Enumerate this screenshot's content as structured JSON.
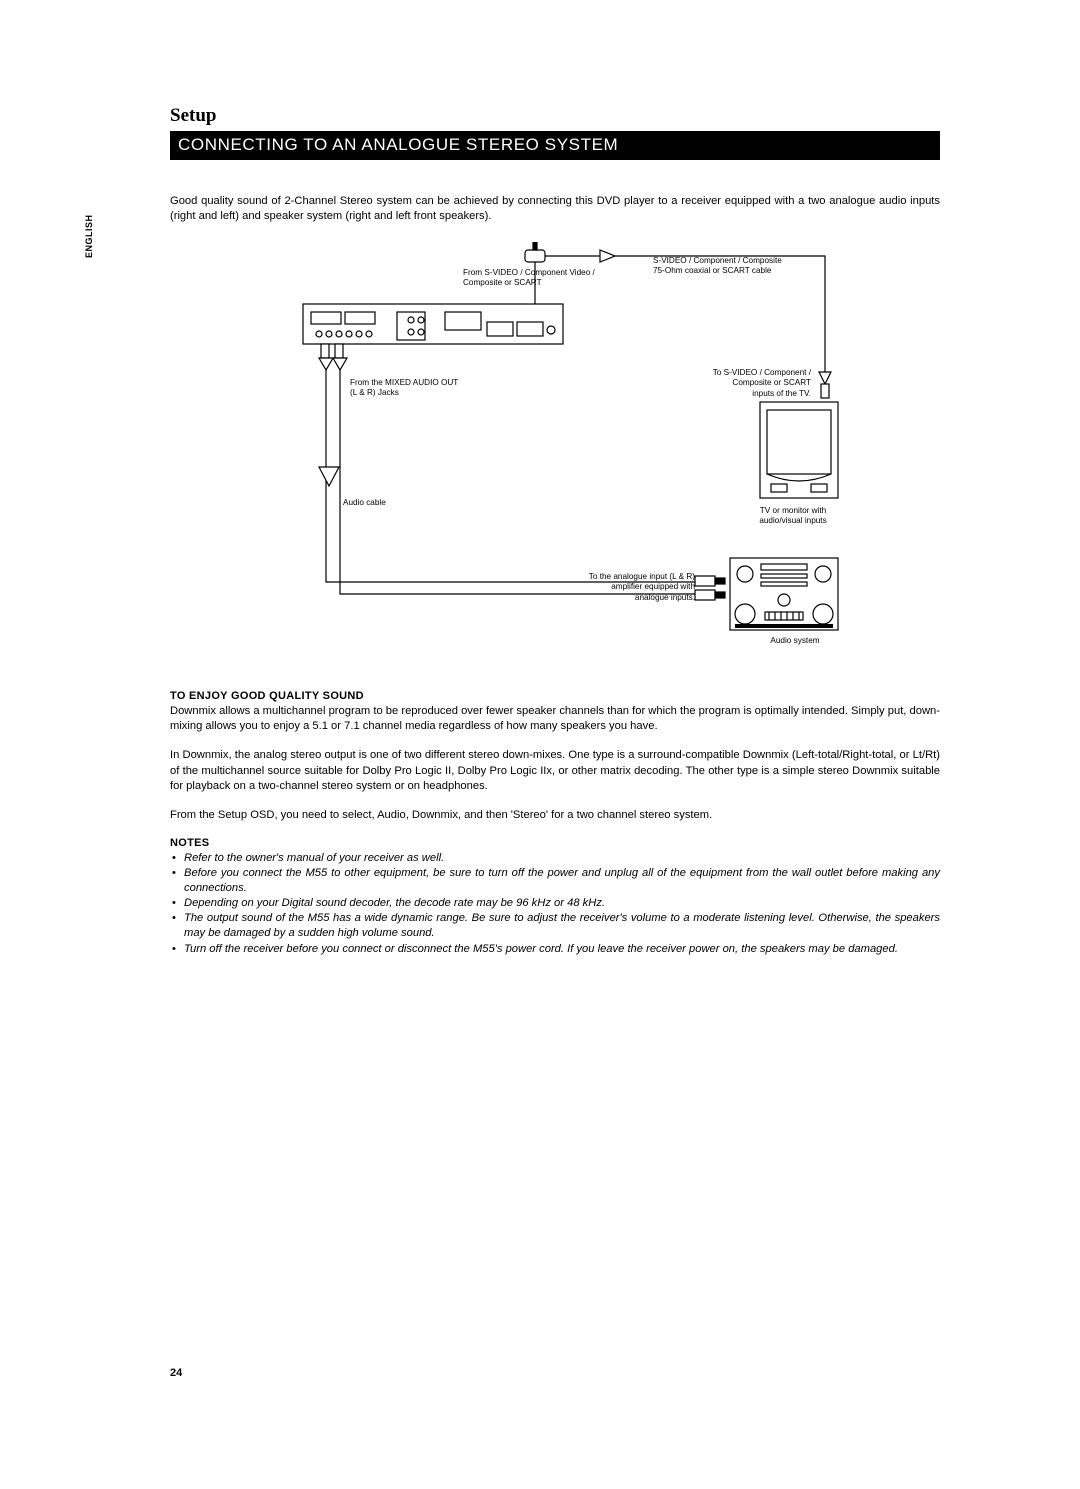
{
  "language_tab": "ENGLISH",
  "title": "Setup",
  "section_bar": "CONNECTING TO AN ANALOGUE STEREO SYSTEM",
  "intro": "Good quality sound of 2-Channel Stereo system can be achieved by connecting this DVD player to a receiver equipped with a two analogue audio inputs (right and left) and speaker system (right and left front speakers).",
  "diagram": {
    "type": "flowchart",
    "line_color": "#000000",
    "line_width": 1.3,
    "background": "#ffffff",
    "font_size": 8.2,
    "labels": {
      "video_from": "From S-VIDEO / Component Video /\nComposite or SCART",
      "video_cable": "S-VIDEO / Component / Composite\n75-Ohm coaxial or SCART cable",
      "audio_from": "From the MIXED AUDIO OUT\n(L & R) Jacks",
      "tv_inputs": "To S-VIDEO / Component /\nComposite or SCART\ninputs of the TV.",
      "audio_cable": "Audio cable",
      "tv_caption": "TV or monitor with\naudio/visual inputs",
      "amp_inputs": "To the analogue input (L & R)\namplifier equipped with\nanalogue inputs.",
      "audio_system": "Audio system"
    }
  },
  "sound_head": "TO ENJOY GOOD QUALITY SOUND",
  "sound_p1": "Downmix allows a multichannel program to be reproduced over fewer speaker channels than for which the program is optimally intended. Simply put, down-mixing allows you to enjoy a 5.1 or 7.1 channel media regardless of how many speakers you have.",
  "sound_p2": "In Downmix, the analog stereo output is one of two different stereo down-mixes. One type is a surround-compatible Downmix (Left-total/Right-total, or Lt/Rt) of the multichannel source suitable for Dolby Pro Logic II, Dolby Pro Logic IIx, or other matrix decoding. The other type is a simple stereo Downmix suitable for playback on a two-channel stereo system or on headphones.",
  "sound_p3": "From the Setup OSD, you need to select, Audio, Downmix, and then 'Stereo' for a two channel stereo system.",
  "notes_head": "NOTES",
  "notes": [
    "Refer to the owner's manual of your receiver as well.",
    "Before you connect the M55 to other equipment, be sure to turn off the power and unplug all of the equipment from the wall outlet before making any connections.",
    "Depending on your Digital sound decoder, the decode rate may be 96 kHz or 48 kHz.",
    "The output sound of the M55 has a wide dynamic range. Be sure to adjust the receiver's volume to a moderate listening level. Otherwise, the speakers may be damaged by a sudden high volume sound.",
    "Turn off the receiver before you connect or disconnect the M55's power cord. If you leave the receiver power on, the speakers may be damaged."
  ],
  "page_number": "24"
}
